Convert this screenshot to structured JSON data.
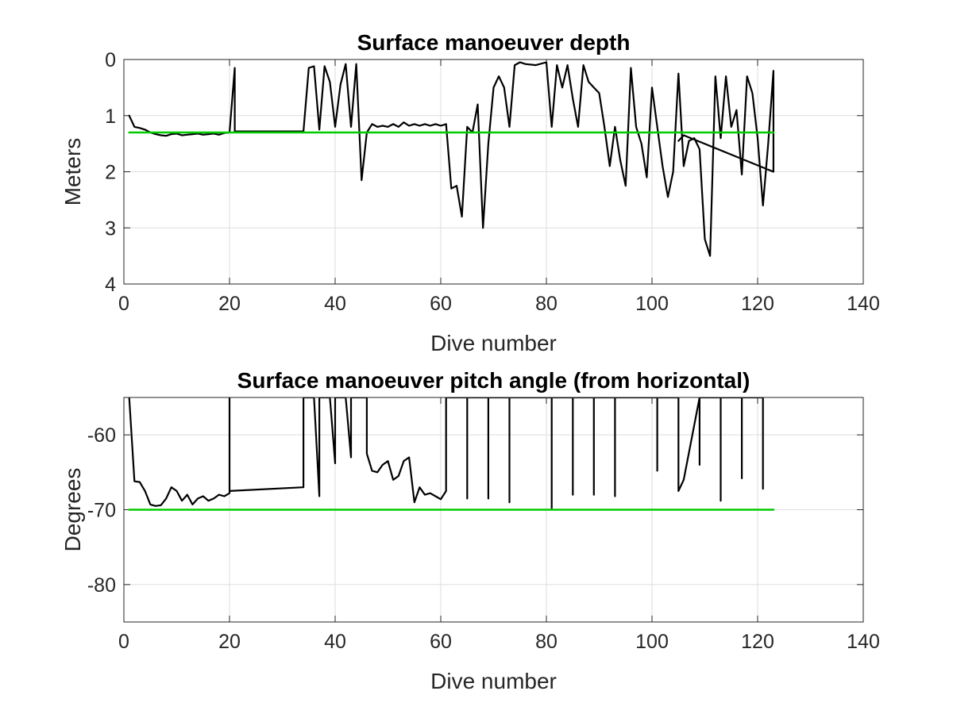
{
  "chart_data": [
    {
      "type": "line",
      "title": "Surface manoeuver depth",
      "xlabel": "Dive number",
      "ylabel": "Meters",
      "xlim": [
        0,
        140
      ],
      "ylim": [
        0,
        4
      ],
      "y_reversed": true,
      "grid": true,
      "x_ticks": [
        "0",
        "20",
        "40",
        "60",
        "80",
        "100",
        "120",
        "140"
      ],
      "y_ticks": [
        "0",
        "1",
        "2",
        "3",
        "4"
      ],
      "series": [
        {
          "color": "#000000",
          "points": [
            [
              1,
              1.0
            ],
            [
              2,
              1.2
            ],
            [
              3,
              1.22
            ],
            [
              4,
              1.25
            ],
            [
              5,
              1.3
            ],
            [
              6,
              1.33
            ],
            [
              7,
              1.35
            ],
            [
              8,
              1.36
            ],
            [
              9,
              1.33
            ],
            [
              10,
              1.32
            ],
            [
              11,
              1.35
            ],
            [
              12,
              1.34
            ],
            [
              13,
              1.33
            ],
            [
              14,
              1.32
            ],
            [
              15,
              1.34
            ],
            [
              16,
              1.33
            ],
            [
              17,
              1.32
            ],
            [
              18,
              1.34
            ],
            [
              19,
              1.31
            ],
            [
              20,
              1.3
            ],
            [
              21,
              0.15
            ],
            [
              21,
              1.28
            ],
            [
              34,
              1.28
            ],
            [
              35,
              0.15
            ],
            [
              36,
              0.12
            ],
            [
              37,
              1.25
            ],
            [
              38,
              0.12
            ],
            [
              39,
              0.4
            ],
            [
              40,
              1.2
            ],
            [
              41,
              0.45
            ],
            [
              42,
              0.08
            ],
            [
              43,
              1.2
            ],
            [
              44,
              0.08
            ],
            [
              45,
              2.15
            ],
            [
              46,
              1.3
            ],
            [
              47,
              1.15
            ],
            [
              48,
              1.2
            ],
            [
              49,
              1.18
            ],
            [
              50,
              1.2
            ],
            [
              51,
              1.15
            ],
            [
              52,
              1.2
            ],
            [
              53,
              1.12
            ],
            [
              54,
              1.18
            ],
            [
              55,
              1.15
            ],
            [
              56,
              1.18
            ],
            [
              57,
              1.15
            ],
            [
              58,
              1.18
            ],
            [
              59,
              1.15
            ],
            [
              60,
              1.18
            ],
            [
              61,
              1.15
            ],
            [
              62,
              2.3
            ],
            [
              63,
              2.25
            ],
            [
              64,
              2.8
            ],
            [
              65,
              1.2
            ],
            [
              66,
              1.3
            ],
            [
              67,
              0.8
            ],
            [
              68,
              3.0
            ],
            [
              69,
              1.5
            ],
            [
              70,
              0.5
            ],
            [
              71,
              0.3
            ],
            [
              72,
              0.5
            ],
            [
              73,
              1.2
            ],
            [
              74,
              0.1
            ],
            [
              75,
              0.05
            ],
            [
              76,
              0.08
            ],
            [
              78,
              0.1
            ],
            [
              80,
              0.05
            ],
            [
              81,
              1.2
            ],
            [
              82,
              0.1
            ],
            [
              83,
              0.5
            ],
            [
              84,
              0.1
            ],
            [
              85,
              0.7
            ],
            [
              86,
              1.2
            ],
            [
              87,
              0.1
            ],
            [
              88,
              0.4
            ],
            [
              89,
              0.5
            ],
            [
              90,
              0.6
            ],
            [
              91,
              1.2
            ],
            [
              92,
              1.9
            ],
            [
              93,
              1.2
            ],
            [
              94,
              1.8
            ],
            [
              95,
              2.25
            ],
            [
              96,
              0.15
            ],
            [
              97,
              1.2
            ],
            [
              98,
              1.5
            ],
            [
              99,
              2.1
            ],
            [
              100,
              0.5
            ],
            [
              101,
              1.2
            ],
            [
              102,
              1.9
            ],
            [
              103,
              2.45
            ],
            [
              104,
              2.0
            ],
            [
              105,
              0.25
            ],
            [
              106,
              1.9
            ],
            [
              107,
              1.45
            ],
            [
              108,
              1.4
            ],
            [
              109,
              1.6
            ],
            [
              110,
              3.2
            ],
            [
              111,
              3.5
            ],
            [
              112,
              0.3
            ],
            [
              113,
              1.4
            ],
            [
              114,
              0.3
            ],
            [
              115,
              1.2
            ],
            [
              116,
              0.9
            ],
            [
              117,
              2.05
            ],
            [
              118,
              0.3
            ],
            [
              119,
              0.6
            ],
            [
              120,
              1.4
            ],
            [
              121,
              2.6
            ],
            [
              122,
              1.5
            ],
            [
              123,
              0.2
            ],
            [
              123,
              2.0
            ],
            [
              106,
              1.35
            ],
            [
              105,
              1.45
            ]
          ]
        },
        {
          "color": "#00cc00",
          "points": [
            [
              1,
              1.3
            ],
            [
              123,
              1.3
            ]
          ]
        }
      ]
    },
    {
      "type": "line",
      "title": "Surface manoeuver pitch angle (from horizontal)",
      "xlabel": "Dive number",
      "ylabel": "Degrees",
      "xlim": [
        0,
        140
      ],
      "ylim": [
        -85,
        -55
      ],
      "grid": true,
      "x_ticks": [
        "0",
        "20",
        "40",
        "60",
        "80",
        "100",
        "120",
        "140"
      ],
      "y_ticks": [
        "-60",
        "-70",
        "-80"
      ],
      "series": [
        {
          "color": "#000000",
          "points": [
            [
              1,
              -55
            ],
            [
              2,
              -66.2
            ],
            [
              3,
              -66.3
            ],
            [
              4,
              -67.5
            ],
            [
              5,
              -69.3
            ],
            [
              6,
              -69.5
            ],
            [
              7,
              -69.4
            ],
            [
              8,
              -68.5
            ],
            [
              9,
              -67.0
            ],
            [
              10,
              -67.5
            ],
            [
              11,
              -68.8
            ],
            [
              12,
              -68.0
            ],
            [
              13,
              -69.3
            ],
            [
              14,
              -68.5
            ],
            [
              15,
              -68.2
            ],
            [
              16,
              -68.8
            ],
            [
              17,
              -68.5
            ],
            [
              18,
              -68.0
            ],
            [
              19,
              -68.2
            ],
            [
              20,
              -67.8
            ],
            [
              20,
              -55
            ],
            [
              20,
              -67.5
            ],
            [
              34,
              -67.0
            ],
            [
              34,
              -55
            ],
            [
              36,
              -55
            ],
            [
              37,
              -68.2
            ],
            [
              37,
              -55
            ],
            [
              39,
              -55
            ],
            [
              40,
              -63.8
            ],
            [
              40,
              -55
            ],
            [
              42,
              -55
            ],
            [
              43,
              -63.0
            ],
            [
              43,
              -55
            ],
            [
              46,
              -55
            ],
            [
              46,
              -62.5
            ],
            [
              47,
              -64.8
            ],
            [
              48,
              -65.0
            ],
            [
              49,
              -64.0
            ],
            [
              50,
              -63.5
            ],
            [
              51,
              -66.0
            ],
            [
              52,
              -65.5
            ],
            [
              53,
              -63.5
            ],
            [
              54,
              -63.0
            ],
            [
              55,
              -69.0
            ],
            [
              56,
              -67.0
            ],
            [
              57,
              -68.0
            ],
            [
              58,
              -67.8
            ],
            [
              59,
              -68.2
            ],
            [
              60,
              -68.6
            ],
            [
              61,
              -67.5
            ],
            [
              61,
              -55
            ],
            [
              65,
              -55
            ],
            [
              65,
              -68.5
            ],
            [
              65,
              -55
            ],
            [
              69,
              -55
            ],
            [
              69,
              -68.5
            ],
            [
              69,
              -55
            ],
            [
              73,
              -55
            ],
            [
              73,
              -69.0
            ],
            [
              73,
              -55
            ],
            [
              81,
              -55
            ],
            [
              81,
              -69.8
            ],
            [
              81,
              -55
            ],
            [
              85,
              -55
            ],
            [
              85,
              -68.0
            ],
            [
              85,
              -55
            ],
            [
              89,
              -55
            ],
            [
              89,
              -68.0
            ],
            [
              89,
              -55
            ],
            [
              93,
              -55
            ],
            [
              93,
              -68.2
            ],
            [
              93,
              -55
            ],
            [
              101,
              -55
            ],
            [
              101,
              -64.8
            ],
            [
              101,
              -55
            ],
            [
              105,
              -55
            ],
            [
              105,
              -67.5
            ],
            [
              106,
              -66.0
            ],
            [
              109,
              -55
            ],
            [
              109,
              -64.0
            ],
            [
              109,
              -55
            ],
            [
              113,
              -55
            ],
            [
              113,
              -68.8
            ],
            [
              113,
              -55
            ],
            [
              117,
              -55
            ],
            [
              117,
              -65.8
            ],
            [
              117,
              -55
            ],
            [
              121,
              -55
            ],
            [
              121,
              -67.2
            ],
            [
              121,
              -55
            ]
          ]
        },
        {
          "color": "#00cc00",
          "points": [
            [
              1,
              -70
            ],
            [
              123,
              -70
            ]
          ]
        }
      ]
    }
  ]
}
